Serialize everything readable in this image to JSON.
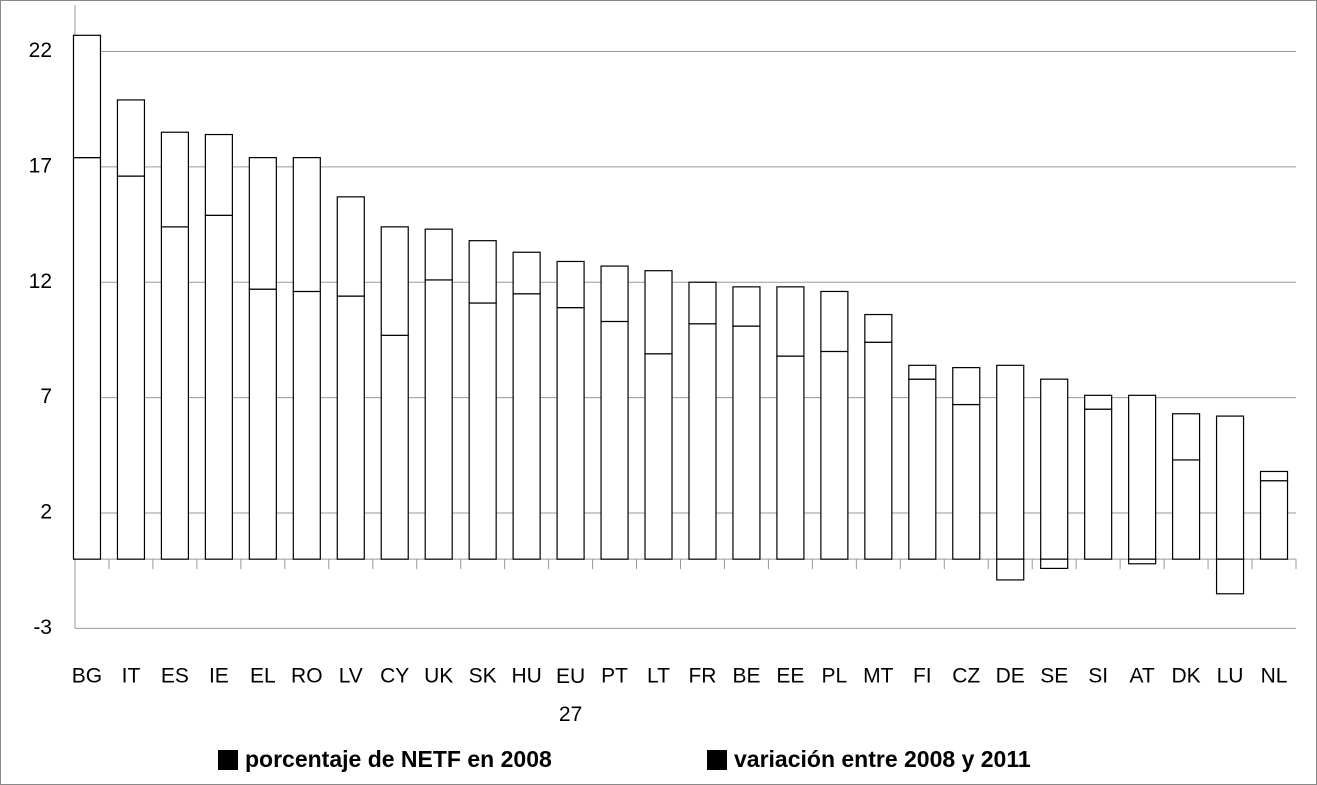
{
  "chart_data": {
    "type": "stacked_bar",
    "categories": [
      "BG",
      "IT",
      "ES",
      "IE",
      "EL",
      "RO",
      "LV",
      "CY",
      "UK",
      "SK",
      "HU",
      "EU 27",
      "PT",
      "LT",
      "FR",
      "BE",
      "EE",
      "PL",
      "MT",
      "FI",
      "CZ",
      "DE",
      "SE",
      "SI",
      "AT",
      "DK",
      "LU",
      "NL"
    ],
    "series": [
      {
        "name": "porcentaje de NETF en 2008",
        "color": "#ffffff",
        "values": [
          17.4,
          16.6,
          14.4,
          14.9,
          11.7,
          11.6,
          11.4,
          9.7,
          12.1,
          11.1,
          11.5,
          10.9,
          10.3,
          8.9,
          10.2,
          10.1,
          8.8,
          9.0,
          9.4,
          7.8,
          6.7,
          8.4,
          7.8,
          6.5,
          7.1,
          4.3,
          6.2,
          3.4
        ]
      },
      {
        "name": "variación entre 2008 y 2011",
        "color": "#ffffff",
        "values": [
          5.3,
          3.3,
          4.1,
          3.5,
          5.7,
          5.8,
          4.3,
          4.7,
          2.2,
          2.7,
          1.8,
          2.0,
          2.4,
          3.6,
          1.8,
          1.7,
          3.0,
          2.6,
          1.2,
          0.6,
          1.6,
          -0.9,
          -0.4,
          0.6,
          -0.2,
          2.0,
          -1.5,
          0.4
        ]
      }
    ],
    "edgecolor": "#000000",
    "legend_marker_color": "#000000",
    "ylim": [
      -3,
      24
    ],
    "yticks": [
      -3,
      2,
      7,
      12,
      17,
      22
    ],
    "grid": true
  }
}
